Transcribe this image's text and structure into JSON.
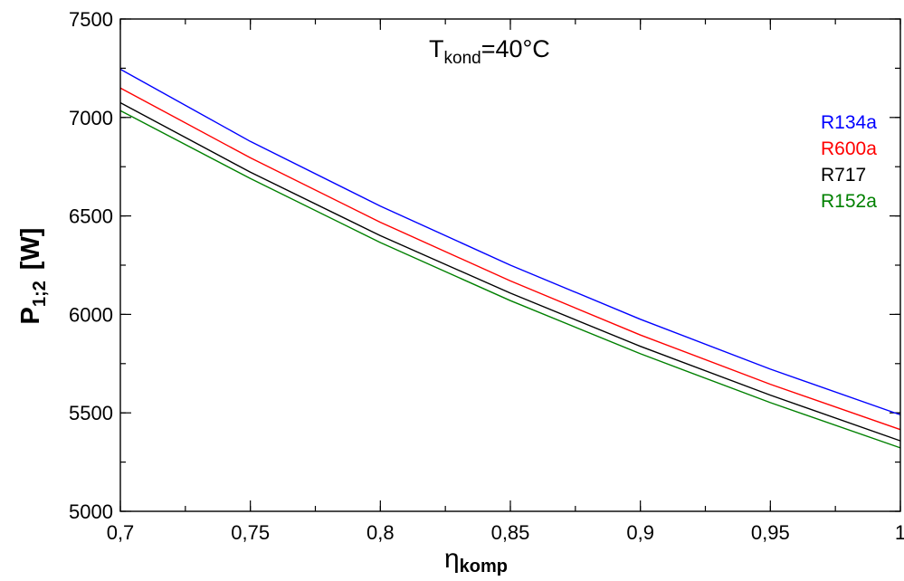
{
  "chart_data": {
    "type": "line",
    "annotation": {
      "base": "T",
      "sub": "kond",
      "rest": "=40°C"
    },
    "xlabel": {
      "base": "η",
      "sub": "komp"
    },
    "ylabel": {
      "base": "P",
      "sub": "1;2",
      "rest": "[W]"
    },
    "xlim": [
      0.7,
      1.0
    ],
    "ylim": [
      5000,
      7500
    ],
    "x_ticks": [
      0.7,
      0.75,
      0.8,
      0.85,
      0.9,
      0.95,
      1.0
    ],
    "x_tick_labels": [
      "0,7",
      "0,75",
      "0,8",
      "0,85",
      "0,9",
      "0,95",
      "1"
    ],
    "y_ticks": [
      5000,
      5500,
      6000,
      6500,
      7000,
      7500
    ],
    "y_tick_labels": [
      "5000",
      "5500",
      "6000",
      "6500",
      "7000",
      "7500"
    ],
    "x_minor_step": 0.025,
    "y_minor_step": 250,
    "grid": false,
    "legend_position": "top-right",
    "x": [
      0.7,
      0.75,
      0.8,
      0.85,
      0.9,
      0.95,
      1.0
    ],
    "series": [
      {
        "name": "R134a",
        "color": "#0000ff",
        "values": [
          7245,
          6878,
          6550,
          6250,
          5975,
          5722,
          5490
        ]
      },
      {
        "name": "R600a",
        "color": "#ff0000",
        "values": [
          7150,
          6795,
          6468,
          6170,
          5895,
          5645,
          5415
        ]
      },
      {
        "name": "R717",
        "color": "#000000",
        "values": [
          7075,
          6722,
          6400,
          6108,
          5838,
          5590,
          5358
        ]
      },
      {
        "name": "R152a",
        "color": "#008000",
        "values": [
          7035,
          6690,
          6365,
          6070,
          5800,
          5552,
          5322
        ]
      }
    ]
  }
}
